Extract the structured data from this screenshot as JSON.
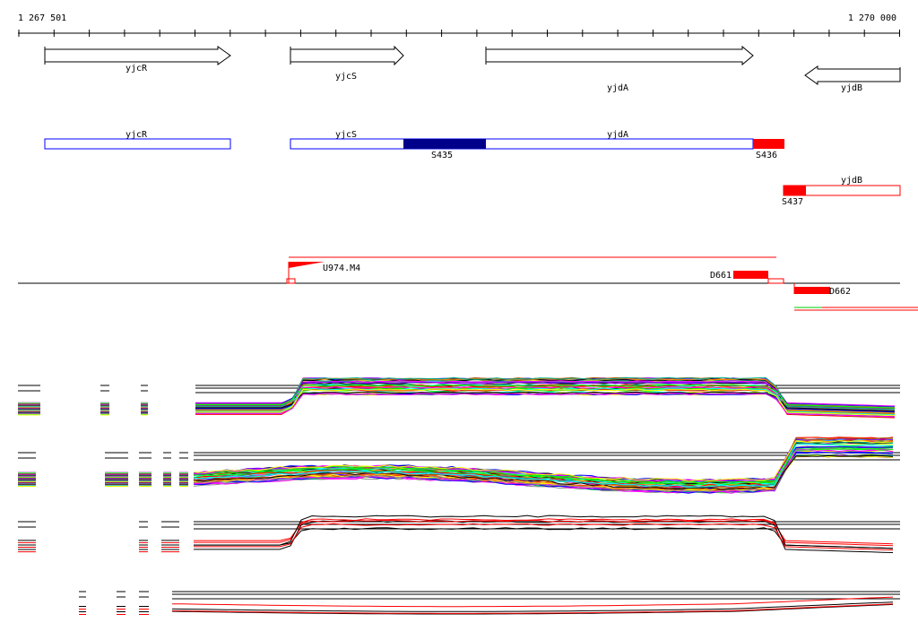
{
  "ruler": {
    "start_label": "1 267 501",
    "end_label": "1 270 000"
  },
  "genes": [
    {
      "name": "yjcR",
      "strand": "+"
    },
    {
      "name": "yjcS",
      "strand": "+"
    },
    {
      "name": "yjdA",
      "strand": "+"
    },
    {
      "name": "yjdB",
      "strand": "-"
    }
  ],
  "transcripts": {
    "labels": [
      "yjcR",
      "yjcS",
      "yjdA",
      "yjdB"
    ],
    "segments": [
      "S435",
      "S436",
      "S437"
    ]
  },
  "features": {
    "upshift": "U974.M4",
    "downshift_1": "D661",
    "downshift_2": "D662"
  },
  "colors": {
    "blue": "#0000ff",
    "navy": "#00008b",
    "red": "#ff0000",
    "green": "#00cc00",
    "black": "#000000"
  },
  "expression_tracks": [
    {
      "name": "panel-1",
      "series_count": 40,
      "mode": "multicolor"
    },
    {
      "name": "panel-2",
      "series_count": 40,
      "mode": "multicolor-rise-right"
    },
    {
      "name": "panel-3",
      "series_count": 6,
      "mode": "black-red"
    },
    {
      "name": "panel-4",
      "series_count": 4,
      "mode": "black-red-flat"
    }
  ]
}
